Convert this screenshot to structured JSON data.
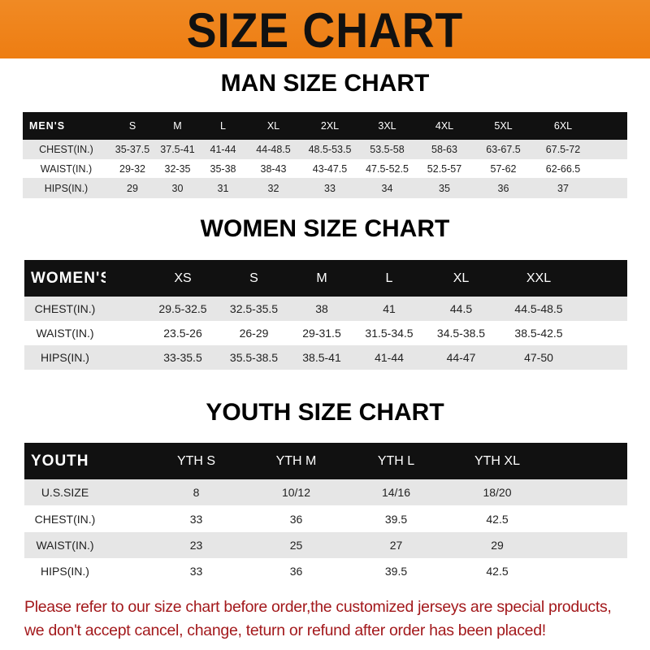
{
  "banner_title": "SIZE CHART",
  "men": {
    "title": "MAN SIZE CHART",
    "header": [
      "MEN'S",
      "S",
      "M",
      "L",
      "XL",
      "2XL",
      "3XL",
      "4XL",
      "5XL",
      "6XL"
    ],
    "rows": [
      [
        "CHEST(IN.)",
        "35-37.5",
        "37.5-41",
        "41-44",
        "44-48.5",
        "48.5-53.5",
        "53.5-58",
        "58-63",
        "63-67.5",
        "67.5-72"
      ],
      [
        "WAIST(IN.)",
        "29-32",
        "32-35",
        "35-38",
        "38-43",
        "43-47.5",
        "47.5-52.5",
        "52.5-57",
        "57-62",
        "62-66.5"
      ],
      [
        "HIPS(IN.)",
        "29",
        "30",
        "31",
        "32",
        "33",
        "34",
        "35",
        "36",
        "37"
      ]
    ]
  },
  "women": {
    "title": "WOMEN SIZE CHART",
    "header": [
      "WOMEN'S",
      "XS",
      "S",
      "M",
      "L",
      "XL",
      "XXL"
    ],
    "rows": [
      [
        "CHEST(IN.)",
        "29.5-32.5",
        "32.5-35.5",
        "38",
        "41",
        "44.5",
        "44.5-48.5"
      ],
      [
        "WAIST(IN.)",
        "23.5-26",
        "26-29",
        "29-31.5",
        "31.5-34.5",
        "34.5-38.5",
        "38.5-42.5"
      ],
      [
        "HIPS(IN.)",
        "33-35.5",
        "35.5-38.5",
        "38.5-41",
        "41-44",
        "44-47",
        "47-50"
      ]
    ]
  },
  "youth": {
    "title": "YOUTH SIZE CHART",
    "header": [
      "YOUTH",
      "YTH S",
      "YTH M",
      "YTH L",
      "YTH XL"
    ],
    "rows": [
      [
        "U.S.SIZE",
        "8",
        "10/12",
        "14/16",
        "18/20"
      ],
      [
        "CHEST(IN.)",
        "33",
        "36",
        "39.5",
        "42.5"
      ],
      [
        "WAIST(IN.)",
        "23",
        "25",
        "27",
        "29"
      ],
      [
        "HIPS(IN.)",
        "33",
        "36",
        "39.5",
        "42.5"
      ]
    ]
  },
  "notice": {
    "line1": "Please refer to our size chart before order,the customized jerseys are special products,",
    "line2": "we don't accept cancel, change, teturn or refund after order has been placed!"
  },
  "colors": {
    "banner": "#ee7d12",
    "header_row": "#111111",
    "alt_row": "#e6e6e6",
    "notice": "#a3191c"
  }
}
